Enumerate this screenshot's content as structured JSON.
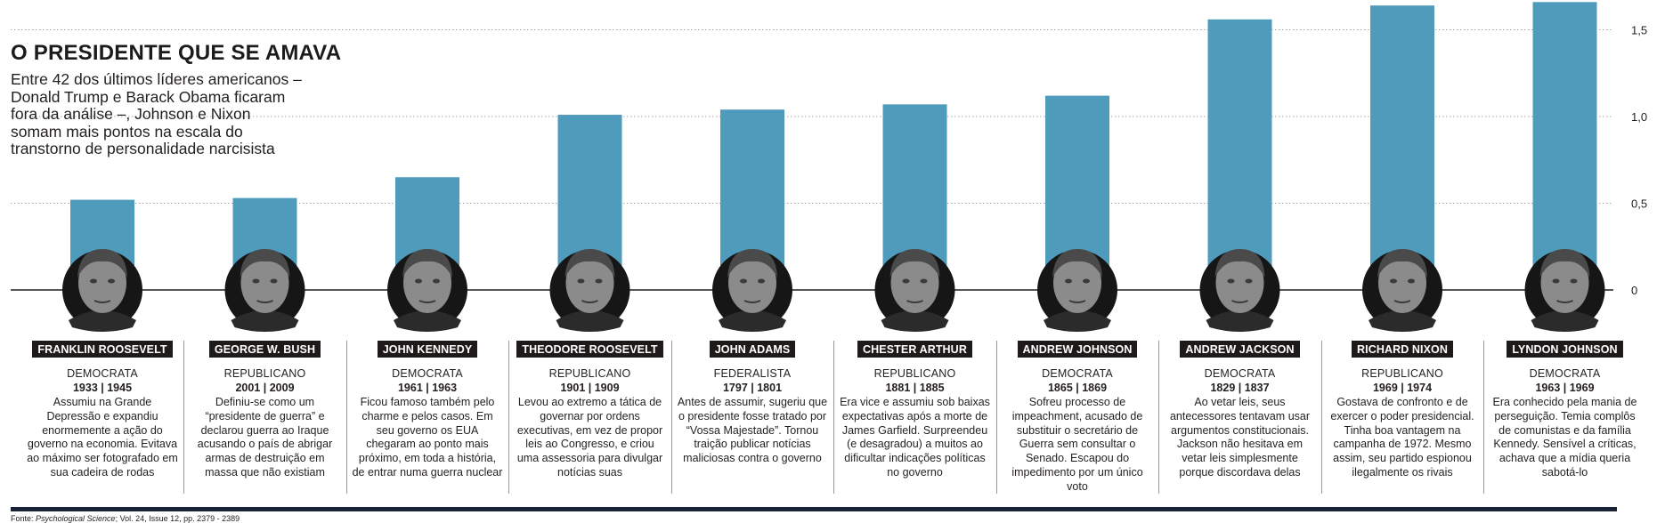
{
  "header": {
    "title": "O PRESIDENTE QUE SE AMAVA",
    "subtitle": "Entre 42 dos últimos líderes americanos – Donald Trump e Barack Obama ficaram fora da análise –, Johnson e Nixon somam mais pontos na escala do transtorno de personalidade narcisista"
  },
  "source": {
    "prefix": "Fonte: ",
    "journal": "Psychological Science",
    "detail": "; Vol. 24, Issue 12, pp. 2379 - 2389"
  },
  "colors": {
    "bar": "#4f9bbc",
    "ink": "#231f20",
    "label_bg": "#1f1a1a"
  },
  "chart_data": {
    "type": "bar",
    "title": "O PRESIDENTE QUE SE AMAVA",
    "xlabel": "",
    "ylabel": "",
    "ylim": [
      0,
      1.65
    ],
    "yticks": [
      "1,5",
      "1,0",
      "0,5",
      "0"
    ],
    "ytick_values": [
      1.5,
      1.0,
      0.5,
      0
    ],
    "grid": true,
    "categories": [
      "FRANKLIN ROOSEVELT",
      "GEORGE W. BUSH",
      "JOHN KENNEDY",
      "THEODORE ROOSEVELT",
      "JOHN ADAMS",
      "CHESTER ARTHUR",
      "ANDREW JOHNSON",
      "ANDREW JACKSON",
      "RICHARD NIXON",
      "LYNDON JOHNSON"
    ],
    "values": [
      0.52,
      0.53,
      0.65,
      1.01,
      1.04,
      1.07,
      1.12,
      1.56,
      1.64,
      1.66
    ]
  },
  "presidents": [
    {
      "name": "FRANKLIN ROOSEVELT",
      "party": "DEMOCRATA",
      "years": "1933 | 1945",
      "desc": "Assumiu na Grande Depressão e expandiu enormemente a ação do governo na economia. Evitava ao máximo ser fotografado em sua cadeira de rodas"
    },
    {
      "name": "GEORGE W. BUSH",
      "party": "REPUBLICANO",
      "years": "2001 | 2009",
      "desc": "Definiu-se como um “presidente de guerra” e declarou guerra ao Iraque acusando o país de abrigar armas de destruição em massa que não existiam"
    },
    {
      "name": "JOHN KENNEDY",
      "party": "DEMOCRATA",
      "years": "1961 | 1963",
      "desc": "Ficou famoso também pelo charme e pelos casos. Em seu governo os EUA chegaram ao ponto mais próximo, em toda a história, de entrar numa guerra nuclear"
    },
    {
      "name": "THEODORE ROOSEVELT",
      "party": "REPUBLICANO",
      "years": "1901 | 1909",
      "desc": "Levou ao extremo a tática de governar por ordens executivas, em vez de propor leis ao Congresso, e criou uma assessoria para divulgar notícias suas"
    },
    {
      "name": "JOHN ADAMS",
      "party": "FEDERALISTA",
      "years": "1797 | 1801",
      "desc": "Antes de assumir, sugeriu que o presidente fosse tratado por “Vossa Majestade”. Tornou traição publicar notícias maliciosas contra o governo"
    },
    {
      "name": "CHESTER ARTHUR",
      "party": "REPUBLICANO",
      "years": "1881 | 1885",
      "desc": "Era vice e assumiu sob baixas expectativas após a morte de James Garfield. Surpreendeu (e desagradou) a muitos ao dificultar indicações políticas no governo"
    },
    {
      "name": "ANDREW JOHNSON",
      "party": "DEMOCRATA",
      "years": "1865 | 1869",
      "desc": "Sofreu processo de impeachment, acusado de substituir o secretário de Guerra sem consultar o Senado. Escapou do impedimento por um único voto"
    },
    {
      "name": "ANDREW JACKSON",
      "party": "DEMOCRATA",
      "years": "1829 | 1837",
      "desc": "Ao vetar leis, seus antecessores tentavam usar argumentos constitucionais. Jackson não hesitava em vetar leis simplesmente porque discordava delas"
    },
    {
      "name": "RICHARD NIXON",
      "party": "REPUBLICANO",
      "years": "1969 | 1974",
      "desc": "Gostava de confronto e de exercer o poder presidencial. Tinha boa vantagem na campanha de 1972. Mesmo assim, seu partido espionou ilegalmente os rivais"
    },
    {
      "name": "LYNDON JOHNSON",
      "party": "DEMOCRATA",
      "years": "1963 | 1969",
      "desc": "Era conhecido pela mania de perseguição. Temia complôs de comunistas e da família Kennedy. Sensível a críticas, achava que a mídia queria sabotá-lo"
    }
  ]
}
